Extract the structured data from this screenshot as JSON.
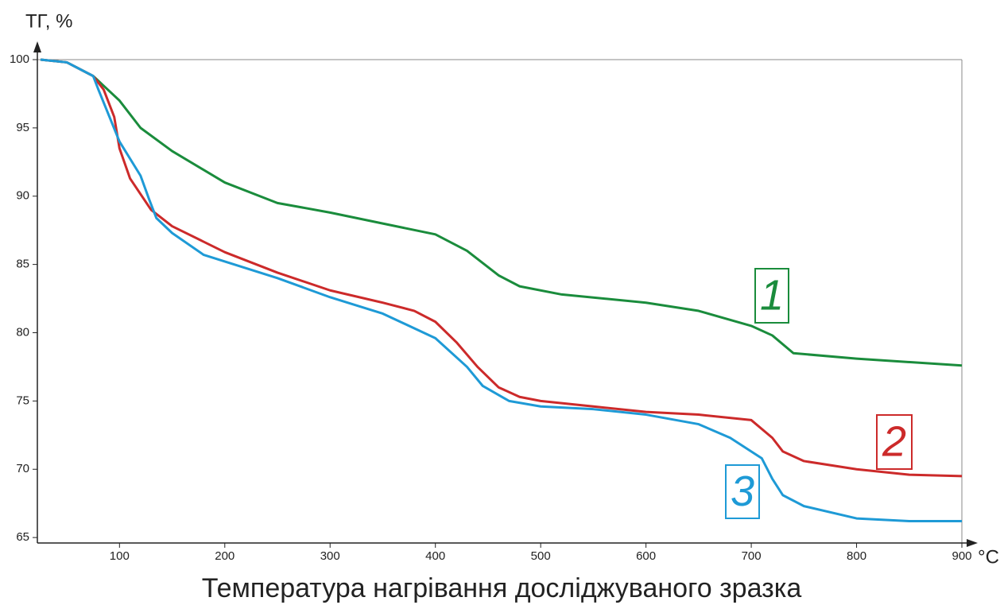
{
  "chart_data": {
    "type": "line",
    "y_label": "ТГ, %",
    "x_unit": "°C",
    "x_label": "Температура нагрівання досліджуваного зразка",
    "xlim": [
      22,
      900
    ],
    "ylim": [
      64.6,
      100
    ],
    "xticks": [
      100,
      200,
      300,
      400,
      500,
      600,
      700,
      800,
      900
    ],
    "yticks": [
      65,
      70,
      75,
      80,
      85,
      90,
      95,
      100
    ],
    "series": [
      {
        "name": "1",
        "color": "#1a8c3c",
        "x": [
          25,
          50,
          75,
          100,
          120,
          150,
          200,
          250,
          300,
          350,
          400,
          430,
          460,
          480,
          520,
          600,
          650,
          700,
          720,
          740,
          800,
          900
        ],
        "values": [
          100,
          99.8,
          98.8,
          97,
          95,
          93.3,
          91,
          89.5,
          88.8,
          88,
          87.2,
          86,
          84.2,
          83.4,
          82.8,
          82.2,
          81.6,
          80.5,
          79.8,
          78.5,
          78.1,
          77.6
        ]
      },
      {
        "name": "2",
        "color": "#cc2a2a",
        "x": [
          25,
          50,
          75,
          85,
          95,
          100,
          110,
          130,
          150,
          200,
          250,
          300,
          350,
          380,
          400,
          420,
          440,
          460,
          480,
          500,
          550,
          600,
          650,
          700,
          720,
          730,
          750,
          800,
          850,
          900
        ],
        "values": [
          100,
          99.8,
          98.8,
          97.8,
          95.8,
          93.5,
          91.3,
          89,
          87.8,
          85.9,
          84.4,
          83.1,
          82.2,
          81.6,
          80.8,
          79.3,
          77.5,
          76,
          75.3,
          75,
          74.6,
          74.2,
          74,
          73.6,
          72.3,
          71.3,
          70.6,
          70,
          69.6,
          69.5
        ]
      },
      {
        "name": "3",
        "color": "#1e9ad6",
        "x": [
          25,
          50,
          75,
          80,
          100,
          120,
          128,
          135,
          150,
          180,
          250,
          300,
          350,
          400,
          430,
          445,
          470,
          500,
          550,
          600,
          650,
          680,
          710,
          720,
          730,
          750,
          800,
          850,
          900
        ],
        "values": [
          100,
          99.8,
          98.8,
          97.8,
          94,
          91.5,
          89.8,
          88.4,
          87.3,
          85.7,
          84,
          82.6,
          81.4,
          79.6,
          77.5,
          76.1,
          75,
          74.6,
          74.4,
          74,
          73.3,
          72.3,
          70.8,
          69.3,
          68.1,
          67.3,
          66.4,
          66.2,
          66.2
        ]
      }
    ]
  }
}
